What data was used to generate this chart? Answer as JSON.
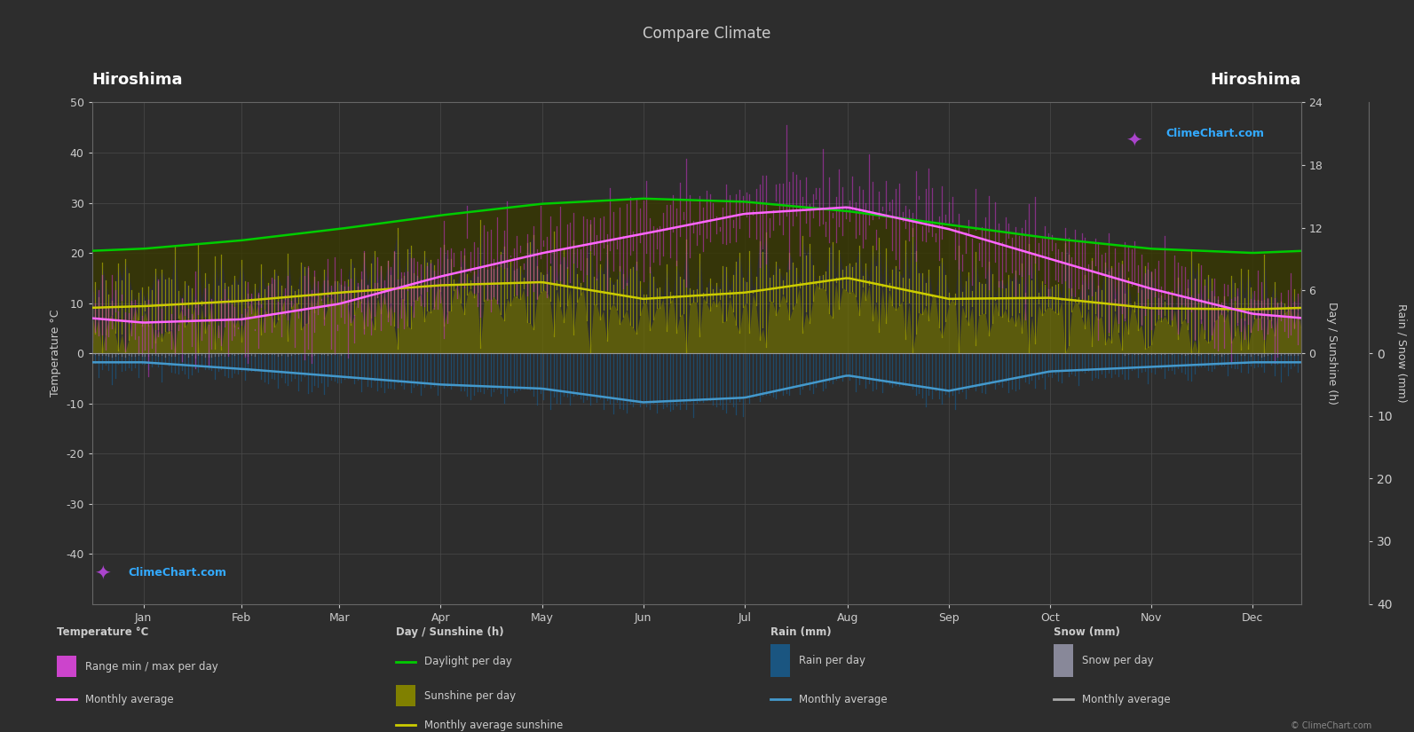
{
  "title": "Compare Climate",
  "city_left": "Hiroshima",
  "city_right": "Hiroshima",
  "background_color": "#2d2d2d",
  "plot_bg_color": "#2d2d2d",
  "grid_color": "#555555",
  "text_color": "#cccccc",
  "months": [
    "Jan",
    "Feb",
    "Mar",
    "Apr",
    "May",
    "Jun",
    "Jul",
    "Aug",
    "Sep",
    "Oct",
    "Nov",
    "Dec"
  ],
  "temp_max_monthly": [
    9.4,
    10.3,
    13.8,
    19.6,
    24.1,
    27.5,
    31.4,
    33.0,
    28.6,
    22.9,
    16.7,
    11.4
  ],
  "temp_min_monthly": [
    2.8,
    3.2,
    5.9,
    11.0,
    15.8,
    20.1,
    24.2,
    25.2,
    20.9,
    14.7,
    9.0,
    4.3
  ],
  "temp_avg_monthly": [
    6.1,
    6.75,
    9.85,
    15.3,
    19.95,
    23.8,
    27.8,
    29.1,
    24.75,
    18.8,
    12.85,
    7.85
  ],
  "daylight_monthly": [
    10.0,
    10.8,
    11.9,
    13.2,
    14.3,
    14.8,
    14.5,
    13.6,
    12.3,
    11.0,
    10.0,
    9.6
  ],
  "sunshine_monthly": [
    4.5,
    5.0,
    5.8,
    6.5,
    6.8,
    5.2,
    5.8,
    7.2,
    5.2,
    5.3,
    4.3,
    4.2
  ],
  "rain_monthly_mm": [
    45,
    70,
    115,
    150,
    175,
    235,
    220,
    110,
    180,
    90,
    65,
    45
  ],
  "snow_monthly_mm": [
    12,
    6,
    1,
    0,
    0,
    0,
    0,
    0,
    0,
    0,
    0,
    8
  ],
  "color_daylight": "#00cc00",
  "color_sunshine_avg": "#cccc00",
  "color_temp_avg": "#ff66ff",
  "color_rain_bar": "#1a5580",
  "color_rain_avg": "#4499cc",
  "color_snow_bar": "#777788",
  "color_snow_avg": "#aaaaaa",
  "color_temp_fill": "#cc44cc",
  "color_sunshine_fill": "#808000",
  "color_daylight_fill": "#404000",
  "axis_font_size": 9,
  "title_font_size": 12,
  "city_font_size": 13
}
